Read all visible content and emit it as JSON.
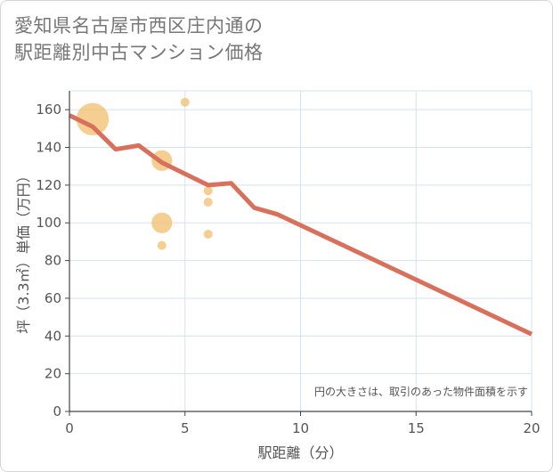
{
  "title_line1": "愛知県名古屋市西区庄内通の",
  "title_line2": "駅距離別中古マンション価格",
  "chart_data": {
    "type": "scatter",
    "title": "愛知県名古屋市西区庄内通の駅距離別中古マンション価格",
    "xlabel": "駅距離（分）",
    "ylabel": "坪（3.3㎡）単価（万円）",
    "xlim": [
      0,
      20
    ],
    "ylim": [
      0,
      170
    ],
    "x_ticks": [
      0,
      5,
      10,
      15,
      20
    ],
    "y_ticks": [
      0,
      20,
      40,
      60,
      80,
      100,
      120,
      140,
      160
    ],
    "grid": true,
    "annotation": "円の大きさは、取引のあった物件面積を示す",
    "colors": {
      "bubble": "#f2bf6e",
      "line": "#d8705c",
      "grid": "#d6e2ef",
      "axis_text": "#555555"
    },
    "bubbles": [
      {
        "x": 1,
        "y": 155,
        "size": 5
      },
      {
        "x": 4,
        "y": 133,
        "size": 3
      },
      {
        "x": 4,
        "y": 100,
        "size": 3
      },
      {
        "x": 4,
        "y": 88,
        "size": 1
      },
      {
        "x": 5,
        "y": 164,
        "size": 1
      },
      {
        "x": 6,
        "y": 117,
        "size": 1
      },
      {
        "x": 6,
        "y": 111,
        "size": 1
      },
      {
        "x": 6,
        "y": 94,
        "size": 1
      }
    ],
    "trend_line": {
      "name": "trend",
      "x": [
        0,
        1,
        2,
        3,
        4,
        5,
        6,
        7,
        8,
        9,
        20
      ],
      "y": [
        157,
        151,
        139,
        141,
        132,
        126,
        120,
        121,
        108,
        104.5,
        41
      ]
    }
  }
}
